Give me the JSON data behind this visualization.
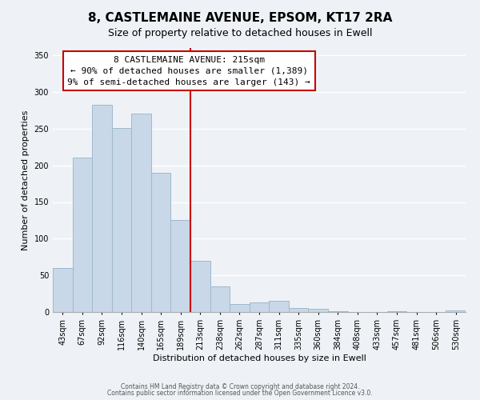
{
  "title": "8, CASTLEMAINE AVENUE, EPSOM, KT17 2RA",
  "subtitle": "Size of property relative to detached houses in Ewell",
  "xlabel": "Distribution of detached houses by size in Ewell",
  "ylabel": "Number of detached properties",
  "bar_labels": [
    "43sqm",
    "67sqm",
    "92sqm",
    "116sqm",
    "140sqm",
    "165sqm",
    "189sqm",
    "213sqm",
    "238sqm",
    "262sqm",
    "287sqm",
    "311sqm",
    "335sqm",
    "360sqm",
    "384sqm",
    "408sqm",
    "433sqm",
    "457sqm",
    "481sqm",
    "506sqm",
    "530sqm"
  ],
  "bar_heights": [
    60,
    210,
    283,
    251,
    271,
    190,
    126,
    70,
    35,
    11,
    13,
    15,
    5,
    4,
    1,
    0,
    0,
    1,
    0,
    0,
    2
  ],
  "bar_color": "#c8d8e8",
  "bar_edge_color": "#a0b8cc",
  "vline_color": "#cc0000",
  "annotation_title": "8 CASTLEMAINE AVENUE: 215sqm",
  "annotation_line1": "← 90% of detached houses are smaller (1,389)",
  "annotation_line2": "9% of semi-detached houses are larger (143) →",
  "annotation_box_color": "#ffffff",
  "annotation_box_edge": "#cc0000",
  "ylim": [
    0,
    360
  ],
  "yticks": [
    0,
    50,
    100,
    150,
    200,
    250,
    300,
    350
  ],
  "footer1": "Contains HM Land Registry data © Crown copyright and database right 2024.",
  "footer2": "Contains public sector information licensed under the Open Government Licence v3.0.",
  "background_color": "#eef2f6",
  "plot_background": "#eef2f6",
  "grid_color": "#ffffff",
  "title_fontsize": 11,
  "subtitle_fontsize": 9,
  "axis_label_fontsize": 8,
  "tick_fontsize": 7
}
